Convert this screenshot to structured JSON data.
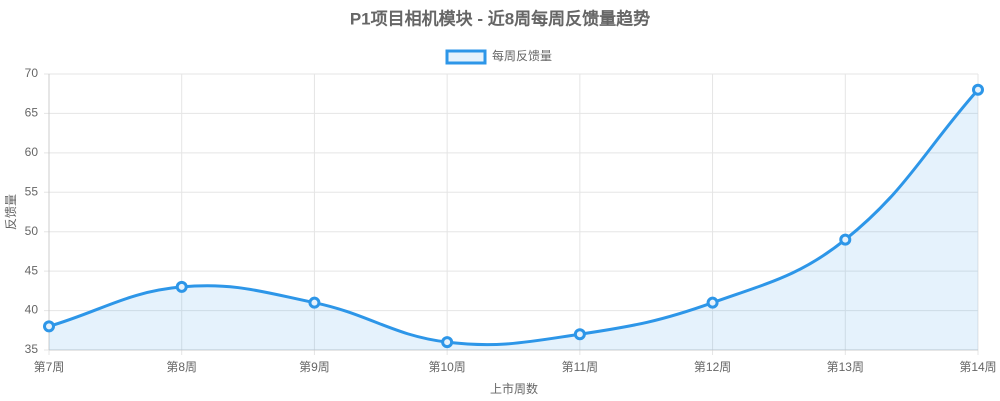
{
  "chart_data": {
    "type": "line",
    "title": "P1项目相机模块 - 近8周每周反馈量趋势",
    "x_label": "上市周数",
    "y_label": "反馈量",
    "categories": [
      "第7周",
      "第8周",
      "第9周",
      "第10周",
      "第11周",
      "第12周",
      "第13周",
      "第14周"
    ],
    "series": [
      {
        "name": "每周反馈量",
        "color": "#2d96e8",
        "values": [
          38,
          43,
          41,
          36,
          37,
          41,
          49,
          68
        ]
      }
    ],
    "ylim": [
      35,
      70
    ],
    "yticks": [
      35,
      40,
      45,
      50,
      55,
      60,
      65,
      70
    ],
    "grid": true,
    "legend": "top",
    "smooth": true,
    "fill": true
  }
}
